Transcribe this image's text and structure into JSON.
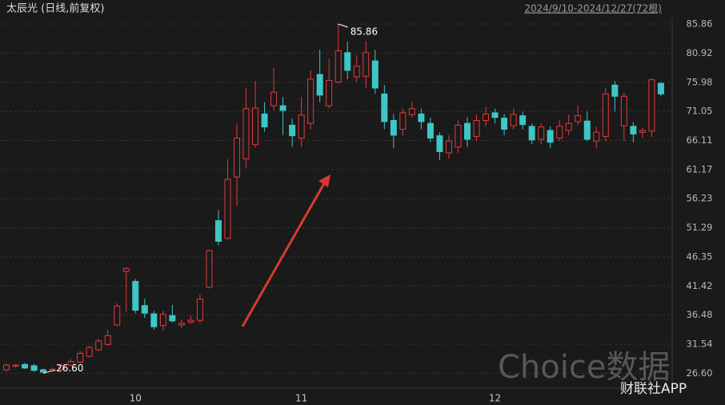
{
  "chart_data": {
    "type": "candlestick",
    "title": "太辰光 (日线,前复权)",
    "subtitle": "2024/9/10-2024/12/27(72根)",
    "watermarks": [
      "Choice数据",
      "财联社APP"
    ],
    "max_label": "85.86",
    "min_label": "26.60",
    "categories": [
      null,
      null,
      null,
      null,
      null,
      null,
      null,
      null,
      null,
      null,
      null,
      null,
      null,
      null,
      "10",
      null,
      null,
      null,
      null,
      null,
      null,
      null,
      null,
      null,
      null,
      null,
      null,
      null,
      null,
      null,
      null,
      null,
      "11",
      null,
      null,
      null,
      null,
      null,
      null,
      null,
      null,
      null,
      null,
      null,
      null,
      null,
      null,
      null,
      null,
      null,
      null,
      null,
      null,
      "12",
      null,
      null,
      null,
      null,
      null,
      null,
      null,
      null,
      null,
      null,
      null,
      null,
      null,
      null,
      null,
      null,
      null,
      null
    ],
    "open": [
      27.2,
      27.8,
      28.1,
      27.9,
      27.2,
      27.0,
      27.3,
      28.0,
      28.5,
      29.5,
      30.6,
      31.5,
      34.8,
      43.9,
      42.2,
      38.1,
      36.7,
      34.7,
      36.4,
      34.8,
      35.3,
      35.6,
      41.2,
      52.5,
      49.5,
      59.9,
      63.0,
      65.4,
      70.6,
      72.0,
      72.0,
      68.7,
      66.5,
      69.0,
      77.3,
      72.0,
      76.0,
      81.0,
      76.9,
      77.0,
      79.6,
      74.0,
      69.5,
      68.0,
      70.5,
      70.6,
      69.0,
      66.9,
      64.0,
      65.0,
      69.0,
      66.8,
      69.5,
      70.8,
      69.9,
      68.6,
      70.3,
      68.5,
      66.3,
      67.8,
      66.5,
      67.8,
      69.3,
      69.4,
      66.0,
      66.8,
      75.5,
      68.6,
      68.5,
      67.5,
      67.7,
      75.8
    ],
    "high": [
      28.3,
      28.2,
      28.4,
      28.2,
      27.4,
      27.6,
      28.3,
      29.0,
      30.4,
      31.3,
      32.4,
      34.0,
      38.5,
      44.6,
      42.6,
      39.3,
      37.2,
      37.2,
      38.2,
      35.7,
      36.4,
      40.0,
      47.6,
      54.3,
      62.9,
      69.0,
      75.0,
      76.2,
      72.6,
      78.4,
      73.5,
      69.8,
      73.5,
      78.0,
      81.5,
      80.0,
      85.86,
      82.9,
      80.5,
      83.0,
      81.5,
      75.5,
      70.6,
      71.5,
      72.6,
      71.5,
      70.0,
      67.5,
      67.0,
      69.5,
      70.0,
      70.5,
      71.8,
      71.5,
      70.6,
      71.5,
      71.0,
      69.0,
      69.0,
      68.5,
      69.5,
      70.5,
      72.0,
      71.0,
      68.5,
      75.0,
      76.2,
      74.2,
      69.2,
      68.3,
      76.6,
      76.0
    ],
    "low": [
      26.9,
      27.6,
      27.3,
      26.9,
      26.6,
      26.9,
      27.1,
      27.8,
      28.3,
      29.3,
      30.4,
      31.3,
      34.6,
      37.0,
      36.8,
      36.0,
      34.0,
      33.8,
      35.2,
      34.3,
      35.0,
      35.1,
      41.0,
      48.3,
      49.3,
      55.0,
      61.5,
      64.9,
      67.6,
      71.2,
      67.0,
      65.0,
      65.0,
      68.0,
      72.6,
      71.5,
      75.8,
      76.5,
      76.0,
      75.0,
      74.0,
      68.0,
      64.8,
      66.9,
      70.0,
      68.0,
      65.8,
      62.8,
      63.0,
      64.0,
      65.0,
      66.0,
      68.5,
      69.0,
      67.0,
      68.0,
      68.0,
      65.5,
      65.5,
      64.8,
      66.0,
      67.0,
      68.8,
      66.0,
      64.8,
      66.0,
      71.0,
      66.0,
      65.8,
      66.5,
      66.7,
      73.6
    ],
    "close": [
      28.0,
      28.0,
      27.5,
      27.1,
      26.8,
      27.3,
      27.9,
      28.6,
      30.0,
      31.0,
      32.1,
      33.0,
      38.0,
      44.4,
      37.3,
      36.8,
      34.5,
      36.6,
      35.5,
      35.1,
      35.6,
      39.2,
      47.4,
      49.0,
      59.5,
      66.5,
      71.5,
      71.6,
      68.4,
      74.3,
      71.2,
      66.9,
      70.4,
      76.5,
      73.8,
      76.3,
      81.3,
      78.0,
      78.7,
      81.0,
      75.0,
      69.3,
      67.0,
      70.8,
      71.5,
      69.3,
      66.5,
      64.2,
      66.0,
      68.7,
      66.3,
      69.5,
      70.6,
      70.0,
      68.0,
      70.5,
      68.8,
      66.2,
      68.4,
      65.8,
      68.5,
      69.0,
      70.3,
      66.3,
      67.5,
      74.0,
      73.6,
      73.6,
      67.2,
      67.8,
      76.4,
      74.0
    ],
    "up_color": "#e5393b",
    "down_color": "#3ec6c6",
    "ylim": [
      23.4,
      87.0
    ],
    "yticks": [
      85.86,
      80.92,
      75.98,
      71.05,
      66.11,
      61.17,
      56.23,
      51.29,
      46.35,
      41.42,
      36.48,
      31.54,
      {
        "value": 26.6,
        "label": "26.60"
      }
    ],
    "grid": true
  }
}
